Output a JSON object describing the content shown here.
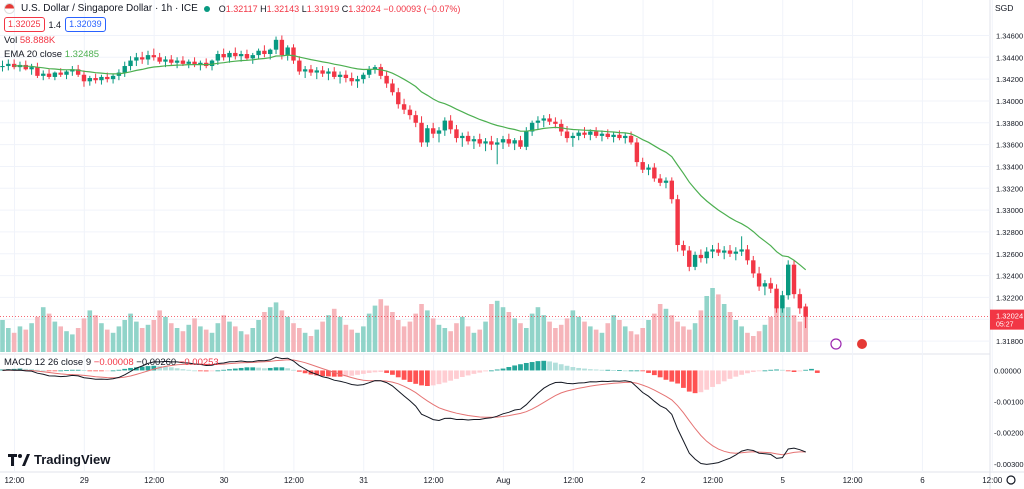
{
  "header": {
    "symbol_title": "U.S. Dollar / Singapore Dollar · 1h · ICE",
    "ohlc": {
      "o_label": "O",
      "o": "1.32117",
      "h_label": "H",
      "h": "1.32143",
      "l_label": "L",
      "l": "1.31919",
      "c_label": "C",
      "c": "1.32024",
      "change": "−0.00093 (−0.07%)"
    },
    "bid": "1.32025",
    "spread": "1.4",
    "ask": "1.32039",
    "vol_label": "Vol",
    "vol_value": "58.888K",
    "ema_label": "EMA 20 close",
    "ema_value": "1.32485",
    "macd_label": "MACD 12 26 close 9",
    "macd_values": [
      "−0.00008",
      "−0.00260",
      "−0.00253"
    ]
  },
  "brand": "TradingView",
  "colors": {
    "up": "#089981",
    "down": "#f23645",
    "ema": "#4caf50",
    "macd": "#131722",
    "signal": "#e57373"
  },
  "chart_data": {
    "type": "candlestick",
    "currency_label": "SGD",
    "price_axis": {
      "ticks": [
        "1.34600",
        "1.34400",
        "1.34200",
        "1.34000",
        "1.33800",
        "1.33600",
        "1.33400",
        "1.33200",
        "1.33000",
        "1.32800",
        "1.32600",
        "1.32400",
        "1.32200",
        "1.32000",
        "1.31800"
      ],
      "min": 1.317,
      "max": 1.3476
    },
    "last_price": "1.32024",
    "countdown": "05:27",
    "time_axis": {
      "labels": [
        "12:00",
        "29",
        "12:00",
        "30",
        "12:00",
        "31",
        "12:00",
        "Aug",
        "12:00",
        "2",
        "12:00",
        "5",
        "12:00",
        "6",
        "12:00"
      ],
      "label_bars": [
        0,
        12,
        24,
        36,
        48,
        60,
        72,
        84,
        96,
        108,
        120,
        132,
        144,
        156,
        168
      ]
    },
    "macd_axis": {
      "ticks": [
        "0.00000",
        "-0.00100",
        "-0.00200",
        "-0.00300"
      ],
      "min": -0.0032,
      "max": 0.0004
    },
    "grid": true,
    "bars": [
      [
        1.3431,
        1.3437,
        1.3427,
        1.3432
      ],
      [
        1.3432,
        1.3438,
        1.3428,
        1.3434
      ],
      [
        1.3434,
        1.3438,
        1.3429,
        1.3431
      ],
      [
        1.3431,
        1.3436,
        1.3427,
        1.3433
      ],
      [
        1.3433,
        1.3437,
        1.3428,
        1.3429
      ],
      [
        1.3429,
        1.3434,
        1.3424,
        1.3431
      ],
      [
        1.3431,
        1.3435,
        1.3421,
        1.3423
      ],
      [
        1.3423,
        1.3428,
        1.3419,
        1.3425
      ],
      [
        1.3425,
        1.3429,
        1.342,
        1.3422
      ],
      [
        1.3422,
        1.3427,
        1.3419,
        1.3426
      ],
      [
        1.3426,
        1.343,
        1.3422,
        1.3424
      ],
      [
        1.3424,
        1.3428,
        1.342,
        1.3427
      ],
      [
        1.3427,
        1.3432,
        1.3423,
        1.3429
      ],
      [
        1.3429,
        1.3433,
        1.3422,
        1.3424
      ],
      [
        1.3424,
        1.3428,
        1.3413,
        1.3418
      ],
      [
        1.3418,
        1.3423,
        1.3414,
        1.3421
      ],
      [
        1.3421,
        1.3425,
        1.3416,
        1.3419
      ],
      [
        1.3419,
        1.3424,
        1.3415,
        1.3422
      ],
      [
        1.3422,
        1.3426,
        1.3417,
        1.342
      ],
      [
        1.342,
        1.3425,
        1.3416,
        1.3423
      ],
      [
        1.3423,
        1.3429,
        1.3419,
        1.3426
      ],
      [
        1.3426,
        1.3436,
        1.3422,
        1.3432
      ],
      [
        1.3432,
        1.3441,
        1.3428,
        1.3437
      ],
      [
        1.3437,
        1.3444,
        1.3432,
        1.344
      ],
      [
        1.344,
        1.3445,
        1.3434,
        1.3438
      ],
      [
        1.3438,
        1.3446,
        1.3433,
        1.3442
      ],
      [
        1.3442,
        1.3448,
        1.3437,
        1.344
      ],
      [
        1.344,
        1.3444,
        1.3434,
        1.3436
      ],
      [
        1.3436,
        1.3441,
        1.3431,
        1.3438
      ],
      [
        1.3438,
        1.3442,
        1.3433,
        1.3435
      ],
      [
        1.3435,
        1.344,
        1.343,
        1.3437
      ],
      [
        1.3437,
        1.3441,
        1.3432,
        1.3434
      ],
      [
        1.3434,
        1.3438,
        1.343,
        1.3436
      ],
      [
        1.3436,
        1.344,
        1.3431,
        1.3433
      ],
      [
        1.3433,
        1.3437,
        1.3428,
        1.3435
      ],
      [
        1.3435,
        1.3439,
        1.343,
        1.3432
      ],
      [
        1.3432,
        1.3438,
        1.3428,
        1.3437
      ],
      [
        1.3437,
        1.3446,
        1.3433,
        1.3443
      ],
      [
        1.3443,
        1.3448,
        1.3437,
        1.344
      ],
      [
        1.344,
        1.3446,
        1.3435,
        1.3444
      ],
      [
        1.3444,
        1.3449,
        1.3438,
        1.3441
      ],
      [
        1.3441,
        1.3446,
        1.3436,
        1.3443
      ],
      [
        1.3443,
        1.3447,
        1.3437,
        1.3439
      ],
      [
        1.3439,
        1.3444,
        1.3434,
        1.3442
      ],
      [
        1.3442,
        1.3448,
        1.3438,
        1.3446
      ],
      [
        1.3446,
        1.3451,
        1.344,
        1.3443
      ],
      [
        1.3443,
        1.3448,
        1.3438,
        1.3447
      ],
      [
        1.3447,
        1.3459,
        1.3443,
        1.3456
      ],
      [
        1.3456,
        1.346,
        1.3438,
        1.3442
      ],
      [
        1.3442,
        1.3451,
        1.3437,
        1.3449
      ],
      [
        1.3449,
        1.3452,
        1.3434,
        1.3437
      ],
      [
        1.3437,
        1.3441,
        1.3424,
        1.3427
      ],
      [
        1.3427,
        1.3432,
        1.3421,
        1.3429
      ],
      [
        1.3429,
        1.3433,
        1.3423,
        1.3426
      ],
      [
        1.3426,
        1.3431,
        1.342,
        1.3428
      ],
      [
        1.3428,
        1.3432,
        1.3422,
        1.3425
      ],
      [
        1.3425,
        1.343,
        1.3419,
        1.3427
      ],
      [
        1.3427,
        1.3431,
        1.342,
        1.3422
      ],
      [
        1.3422,
        1.3427,
        1.3416,
        1.3424
      ],
      [
        1.3424,
        1.3428,
        1.3417,
        1.3421
      ],
      [
        1.3421,
        1.3426,
        1.3414,
        1.3418
      ],
      [
        1.3418,
        1.3423,
        1.3412,
        1.342
      ],
      [
        1.342,
        1.3426,
        1.3416,
        1.3424
      ],
      [
        1.3424,
        1.3432,
        1.3421,
        1.3429
      ],
      [
        1.3429,
        1.3433,
        1.3425,
        1.3431
      ],
      [
        1.3431,
        1.3434,
        1.342,
        1.3423
      ],
      [
        1.3423,
        1.3427,
        1.3412,
        1.3416
      ],
      [
        1.3416,
        1.342,
        1.3405,
        1.3408
      ],
      [
        1.3408,
        1.3412,
        1.3393,
        1.3397
      ],
      [
        1.3397,
        1.3402,
        1.3388,
        1.3392
      ],
      [
        1.3392,
        1.3396,
        1.3383,
        1.3387
      ],
      [
        1.3387,
        1.3391,
        1.3376,
        1.338
      ],
      [
        1.338,
        1.3386,
        1.3358,
        1.3362
      ],
      [
        1.3362,
        1.3378,
        1.3358,
        1.3375
      ],
      [
        1.3375,
        1.338,
        1.3366,
        1.337
      ],
      [
        1.337,
        1.3376,
        1.3362,
        1.3373
      ],
      [
        1.3373,
        1.3385,
        1.3368,
        1.3382
      ],
      [
        1.3382,
        1.3387,
        1.337,
        1.3374
      ],
      [
        1.3374,
        1.3378,
        1.3362,
        1.3366
      ],
      [
        1.3366,
        1.3371,
        1.3358,
        1.3368
      ],
      [
        1.3368,
        1.3372,
        1.336,
        1.3363
      ],
      [
        1.3363,
        1.3368,
        1.3356,
        1.3365
      ],
      [
        1.3365,
        1.337,
        1.3358,
        1.3361
      ],
      [
        1.3361,
        1.3366,
        1.3354,
        1.3363
      ],
      [
        1.3363,
        1.3368,
        1.3355,
        1.336
      ],
      [
        1.336,
        1.3366,
        1.3342,
        1.3362
      ],
      [
        1.3362,
        1.3368,
        1.3356,
        1.3365
      ],
      [
        1.3365,
        1.337,
        1.3358,
        1.3361
      ],
      [
        1.3361,
        1.3366,
        1.3355,
        1.3364
      ],
      [
        1.3364,
        1.3368,
        1.3356,
        1.3358
      ],
      [
        1.3358,
        1.3376,
        1.3355,
        1.3372
      ],
      [
        1.3372,
        1.3382,
        1.3368,
        1.338
      ],
      [
        1.338,
        1.3386,
        1.3374,
        1.3382
      ],
      [
        1.3382,
        1.3387,
        1.3376,
        1.3384
      ],
      [
        1.3384,
        1.3388,
        1.3378,
        1.3381
      ],
      [
        1.3381,
        1.3385,
        1.3375,
        1.3379
      ],
      [
        1.3379,
        1.3383,
        1.3368,
        1.3372
      ],
      [
        1.3372,
        1.3377,
        1.3362,
        1.3366
      ],
      [
        1.3366,
        1.3371,
        1.3358,
        1.3368
      ],
      [
        1.3368,
        1.3373,
        1.3364,
        1.3371
      ],
      [
        1.3371,
        1.3376,
        1.3366,
        1.3369
      ],
      [
        1.3369,
        1.3374,
        1.3364,
        1.3372
      ],
      [
        1.3372,
        1.3376,
        1.3366,
        1.3368
      ],
      [
        1.3368,
        1.3373,
        1.3363,
        1.337
      ],
      [
        1.337,
        1.3374,
        1.3365,
        1.3367
      ],
      [
        1.3367,
        1.3372,
        1.3362,
        1.3369
      ],
      [
        1.3369,
        1.3373,
        1.3364,
        1.3366
      ],
      [
        1.3366,
        1.3371,
        1.3361,
        1.3368
      ],
      [
        1.3368,
        1.3372,
        1.336,
        1.3362
      ],
      [
        1.3362,
        1.3366,
        1.334,
        1.3344
      ],
      [
        1.3344,
        1.3348,
        1.3334,
        1.3337
      ],
      [
        1.3337,
        1.3342,
        1.3332,
        1.3339
      ],
      [
        1.3339,
        1.3343,
        1.3326,
        1.3329
      ],
      [
        1.3329,
        1.3333,
        1.3322,
        1.3325
      ],
      [
        1.3325,
        1.333,
        1.332,
        1.3327
      ],
      [
        1.3327,
        1.333,
        1.3306,
        1.331
      ],
      [
        1.331,
        1.3314,
        1.3262,
        1.3268
      ],
      [
        1.3268,
        1.3272,
        1.3258,
        1.3263
      ],
      [
        1.3263,
        1.3267,
        1.3244,
        1.3248
      ],
      [
        1.3248,
        1.3262,
        1.3245,
        1.3259
      ],
      [
        1.3259,
        1.3264,
        1.3252,
        1.3256
      ],
      [
        1.3256,
        1.3266,
        1.3251,
        1.3262
      ],
      [
        1.3262,
        1.3268,
        1.3256,
        1.3264
      ],
      [
        1.3264,
        1.327,
        1.3258,
        1.3261
      ],
      [
        1.3261,
        1.3267,
        1.3255,
        1.3263
      ],
      [
        1.3263,
        1.3268,
        1.3257,
        1.326
      ],
      [
        1.326,
        1.3266,
        1.3254,
        1.3262
      ],
      [
        1.3262,
        1.3276,
        1.3258,
        1.3264
      ],
      [
        1.3264,
        1.3268,
        1.325,
        1.3254
      ],
      [
        1.3254,
        1.3258,
        1.3238,
        1.3242
      ],
      [
        1.3242,
        1.3248,
        1.3226,
        1.323
      ],
      [
        1.323,
        1.3236,
        1.3222,
        1.3233
      ],
      [
        1.3233,
        1.3238,
        1.3224,
        1.3228
      ],
      [
        1.3228,
        1.3232,
        1.3206,
        1.321
      ],
      [
        1.321,
        1.3226,
        1.3206,
        1.3222
      ],
      [
        1.3222,
        1.3254,
        1.3218,
        1.325
      ],
      [
        1.325,
        1.3254,
        1.3219,
        1.3223
      ],
      [
        1.3223,
        1.3228,
        1.3205,
        1.321
      ],
      [
        1.32117,
        1.32143,
        1.31919,
        1.32024
      ]
    ],
    "volume": [
      2,
      1.5,
      1.2,
      1.6,
      1.4,
      1.8,
      2.2,
      2.8,
      2.4,
      1.9,
      1.6,
      1.3,
      1.1,
      1.5,
      2.1,
      2.6,
      2.3,
      1.8,
      1.4,
      1.2,
      1.6,
      2.0,
      2.4,
      1.9,
      1.5,
      1.7,
      2.0,
      2.6,
      2.2,
      1.8,
      1.5,
      1.3,
      1.7,
      2.1,
      1.6,
      1.4,
      1.2,
      1.8,
      2.3,
      1.9,
      1.6,
      1.3,
      1.1,
      1.5,
      2.0,
      2.5,
      2.8,
      3.1,
      2.6,
      2.2,
      1.8,
      1.5,
      1.2,
      1.0,
      1.4,
      1.9,
      2.3,
      2.7,
      2.2,
      1.7,
      1.4,
      1.2,
      1.6,
      2.4,
      2.9,
      3.3,
      2.9,
      2.5,
      2.0,
      1.6,
      1.9,
      2.4,
      3.0,
      2.6,
      2.1,
      1.7,
      1.5,
      1.3,
      1.8,
      2.2,
      1.6,
      1.2,
      1.4,
      1.9,
      3.0,
      3.2,
      2.8,
      2.5,
      2.1,
      1.8,
      1.5,
      2.4,
      2.8,
      2.3,
      1.9,
      1.5,
      1.7,
      2.1,
      2.6,
      2.2,
      1.9,
      1.6,
      1.4,
      1.2,
      1.8,
      2.3,
      2.0,
      1.6,
      1.3,
      1.1,
      1.5,
      2.0,
      2.4,
      3.0,
      2.7,
      2.3,
      1.9,
      1.6,
      1.4,
      1.8,
      2.6,
      3.5,
      4.0,
      3.6,
      3.0,
      2.5,
      2.0,
      1.6,
      1.2,
      1.0,
      1.3,
      1.7,
      2.2,
      2.9,
      3.3,
      2.8,
      2.3,
      1.9,
      2.7,
      1.5,
      1.2
    ],
    "macd_hist": [
      3e-05,
      4e-05,
      5e-05,
      6e-05,
      5e-05,
      4e-05,
      2e-05,
      0.0,
      -1e-05,
      -1e-05,
      0.0,
      1e-05,
      2e-05,
      2e-05,
      1e-05,
      -1e-05,
      -2e-05,
      -2e-05,
      -1e-05,
      0.0,
      2e-05,
      5e-05,
      8e-05,
      0.0001,
      0.00012,
      0.00014,
      0.00015,
      0.00014,
      0.00012,
      0.0001,
      7e-05,
      4e-05,
      2e-05,
      0.0,
      -2e-05,
      -3e-05,
      -2e-05,
      0.0,
      2e-05,
      4e-05,
      6e-05,
      8e-05,
      0.0001,
      0.0001,
      9e-05,
      7e-05,
      8e-05,
      0.0001,
      0.0001,
      7e-05,
      2e-05,
      -4e-05,
      -9e-05,
      -0.00013,
      -0.00016,
      -0.00018,
      -0.00019,
      -0.0002,
      -0.0002,
      -0.00019,
      -0.00017,
      -0.00014,
      -0.00011,
      -8e-05,
      -6e-05,
      -5e-05,
      -8e-05,
      -0.00014,
      -0.00022,
      -0.0003,
      -0.00037,
      -0.00043,
      -0.00048,
      -0.0005,
      -0.00048,
      -0.00044,
      -0.00039,
      -0.00033,
      -0.00027,
      -0.00021,
      -0.00016,
      -0.00011,
      -7e-05,
      -3e-05,
      0.0,
      3e-05,
      6e-05,
      0.00011,
      0.00016,
      0.0002,
      0.00024,
      0.00027,
      0.0003,
      0.00031,
      0.00029,
      0.00025,
      0.0002,
      0.00015,
      0.00011,
      8e-05,
      6e-05,
      4e-05,
      3e-05,
      2e-05,
      2e-05,
      1e-05,
      1e-05,
      0.0,
      0.0,
      0.0,
      -2e-05,
      -8e-05,
      -0.00015,
      -0.00022,
      -0.0003,
      -0.00036,
      -0.00042,
      -0.00056,
      -0.00068,
      -0.00073,
      -0.0007,
      -0.00062,
      -0.00053,
      -0.00044,
      -0.00035,
      -0.00027,
      -0.0002,
      -0.00014,
      -9e-05,
      -5e-05,
      -2e-05,
      0.0,
      2e-05,
      3e-05,
      2e-05,
      -2e-05,
      -5e-05,
      -3e-05,
      2e-05,
      5e-05,
      -8e-05
    ],
    "ema_label_value": 1.32485
  }
}
